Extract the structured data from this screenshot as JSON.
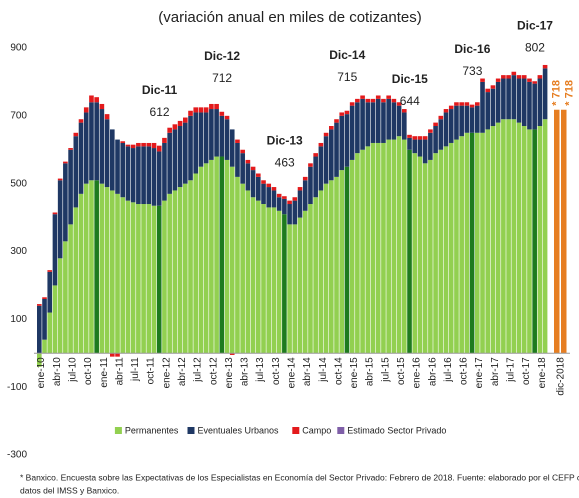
{
  "chart_data": {
    "type": "stacked_bar",
    "title": "(variación anual en miles de cotizantes)",
    "footnote": [
      "* Banxico. Encuesta sobre las Expectativas de los Especialistas en Economía del Sector Privado: Febrero de 2018. Fuente: elaborado por el CEFP con",
      "datos del IMSS y Banxico."
    ],
    "ylim": [
      -300,
      900
    ],
    "yticks": [
      -300,
      -100,
      100,
      300,
      500,
      700,
      900
    ],
    "grid": false,
    "legend": "bottom",
    "highlight_color": "#1e7b1e",
    "highlight_indices": [
      11,
      23,
      35,
      47,
      59,
      71,
      83,
      95
    ],
    "categories": [
      "ene-10",
      null,
      null,
      "abr-10",
      null,
      null,
      "jul-10",
      null,
      null,
      "oct-10",
      null,
      null,
      "ene-11",
      null,
      null,
      "abr-11",
      null,
      null,
      "jul-11",
      null,
      null,
      "oct-11",
      null,
      null,
      "ene-12",
      null,
      null,
      "abr-12",
      null,
      null,
      "jul-12",
      null,
      null,
      "oct-12",
      null,
      null,
      "ene-13",
      null,
      null,
      "abr-13",
      null,
      null,
      "jul-13",
      null,
      null,
      "oct-13",
      null,
      null,
      "ene-14",
      null,
      null,
      "abr-14",
      null,
      null,
      "jul-14",
      null,
      null,
      "oct-14",
      null,
      null,
      "ene-15",
      null,
      null,
      "abr-15",
      null,
      null,
      "jul-15",
      null,
      null,
      "oct-15",
      null,
      null,
      "ene-16",
      null,
      null,
      "abr-16",
      null,
      null,
      "jul-16",
      null,
      null,
      "oct-16",
      null,
      null,
      "ene-17",
      null,
      null,
      "abr-17",
      null,
      null,
      "jul-17",
      null,
      null,
      "oct-17",
      null,
      null,
      "ene-18",
      null,
      "dic-2018",
      null
    ],
    "series": [
      {
        "name": "Permanentes",
        "color": "#92d050",
        "values": [
          -40,
          40,
          120,
          200,
          280,
          330,
          380,
          430,
          470,
          500,
          510,
          510,
          500,
          490,
          480,
          470,
          460,
          450,
          445,
          440,
          440,
          440,
          435,
          435,
          450,
          470,
          480,
          490,
          500,
          510,
          530,
          550,
          560,
          570,
          580,
          580,
          570,
          550,
          520,
          500,
          480,
          460,
          450,
          440,
          430,
          430,
          420,
          410,
          380,
          380,
          400,
          420,
          440,
          460,
          480,
          500,
          510,
          520,
          540,
          550,
          570,
          590,
          600,
          610,
          620,
          620,
          620,
          630,
          630,
          640,
          630,
          600,
          590,
          580,
          560,
          570,
          590,
          600,
          610,
          620,
          630,
          640,
          650,
          650,
          650,
          650,
          660,
          670,
          680,
          690,
          690,
          690,
          680,
          670,
          660,
          660,
          670,
          690,
          null,
          null
        ]
      },
      {
        "name": "Eventuales Urbanos",
        "color": "#1f3864",
        "values": [
          140,
          120,
          120,
          210,
          230,
          230,
          220,
          210,
          210,
          210,
          230,
          230,
          220,
          200,
          180,
          160,
          160,
          160,
          160,
          170,
          170,
          170,
          170,
          160,
          170,
          180,
          180,
          180,
          180,
          190,
          180,
          160,
          150,
          150,
          140,
          120,
          120,
          110,
          100,
          90,
          80,
          80,
          70,
          60,
          60,
          50,
          40,
          45,
          60,
          70,
          80,
          90,
          110,
          120,
          130,
          140,
          150,
          160,
          160,
          155,
          160,
          150,
          150,
          130,
          120,
          130,
          120,
          120,
          110,
          90,
          80,
          35,
          40,
          50,
          70,
          80,
          80,
          90,
          100,
          100,
          100,
          90,
          80,
          75,
          80,
          150,
          110,
          110,
          120,
          120,
          120,
          130,
          130,
          140,
          140,
          135,
          140,
          150,
          null,
          null
        ]
      },
      {
        "name": "Campo",
        "color": "#e31a1c",
        "values": [
          5,
          5,
          5,
          5,
          5,
          5,
          5,
          10,
          10,
          15,
          20,
          15,
          15,
          15,
          -10,
          -10,
          5,
          5,
          10,
          10,
          10,
          10,
          15,
          17,
          15,
          15,
          15,
          15,
          15,
          15,
          15,
          15,
          15,
          15,
          15,
          12,
          10,
          -5,
          10,
          10,
          10,
          10,
          10,
          10,
          10,
          10,
          10,
          8,
          10,
          10,
          10,
          10,
          10,
          10,
          10,
          10,
          10,
          10,
          10,
          10,
          10,
          10,
          10,
          10,
          10,
          10,
          10,
          10,
          10,
          10,
          10,
          9,
          10,
          10,
          10,
          10,
          10,
          10,
          10,
          10,
          10,
          10,
          10,
          8,
          10,
          10,
          10,
          10,
          10,
          10,
          10,
          10,
          10,
          10,
          10,
          7,
          10,
          10,
          null,
          null
        ]
      },
      {
        "name": "Estimado Sector Privado",
        "color": "#7f5fa8",
        "bar_color": "#e67e22",
        "values": [
          null,
          null,
          null,
          null,
          null,
          null,
          null,
          null,
          null,
          null,
          null,
          null,
          null,
          null,
          null,
          null,
          null,
          null,
          null,
          null,
          null,
          null,
          null,
          null,
          null,
          null,
          null,
          null,
          null,
          null,
          null,
          null,
          null,
          null,
          null,
          null,
          null,
          null,
          null,
          null,
          null,
          null,
          null,
          null,
          null,
          null,
          null,
          null,
          null,
          null,
          null,
          null,
          null,
          null,
          null,
          null,
          null,
          null,
          null,
          null,
          null,
          null,
          null,
          null,
          null,
          null,
          null,
          null,
          null,
          null,
          null,
          null,
          null,
          null,
          null,
          null,
          null,
          null,
          null,
          null,
          null,
          null,
          null,
          null,
          null,
          null,
          null,
          null,
          null,
          null,
          null,
          null,
          null,
          null,
          null,
          null,
          null,
          null,
          718,
          718
        ],
        "value_labels": [
          null,
          null,
          null,
          null,
          null,
          null,
          null,
          null,
          null,
          null,
          null,
          null,
          null,
          null,
          null,
          null,
          null,
          null,
          null,
          null,
          null,
          null,
          null,
          null,
          null,
          null,
          null,
          null,
          null,
          null,
          null,
          null,
          null,
          null,
          null,
          null,
          null,
          null,
          null,
          null,
          null,
          null,
          null,
          null,
          null,
          null,
          null,
          null,
          null,
          null,
          null,
          null,
          null,
          null,
          null,
          null,
          null,
          null,
          null,
          null,
          null,
          null,
          null,
          null,
          null,
          null,
          null,
          null,
          null,
          null,
          null,
          null,
          null,
          null,
          null,
          null,
          null,
          null,
          null,
          null,
          null,
          null,
          null,
          null,
          null,
          null,
          null,
          null,
          null,
          null,
          null,
          null,
          null,
          null,
          null,
          null,
          null,
          null,
          "* 718",
          "* 718"
        ]
      }
    ],
    "annotations": [
      {
        "label": "Dic-11",
        "value": 612,
        "index": 23
      },
      {
        "label": "Dic-12",
        "value": 712,
        "index": 35
      },
      {
        "label": "Dic-13",
        "value": 463,
        "index": 47
      },
      {
        "label": "Dic-14",
        "value": 715,
        "index": 59
      },
      {
        "label": "Dic-15",
        "value": 644,
        "index": 71
      },
      {
        "label": "Dic-16",
        "value": 733,
        "index": 83
      },
      {
        "label": "Dic-17",
        "value": 802,
        "index": 95
      }
    ]
  }
}
